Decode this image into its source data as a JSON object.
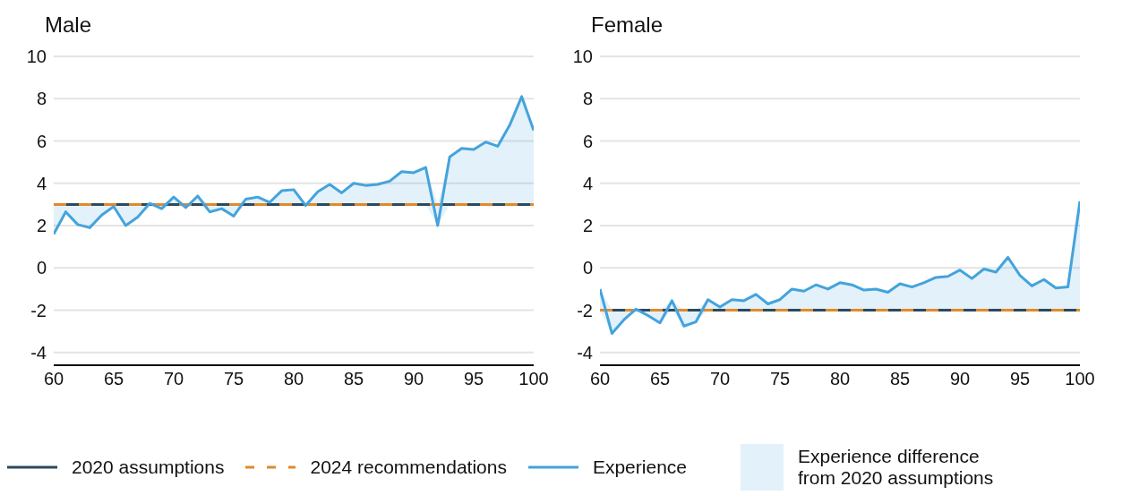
{
  "chart_data": [
    {
      "type": "line",
      "title": "Male",
      "xlim": [
        60,
        100
      ],
      "xticks": [
        60,
        65,
        70,
        75,
        80,
        85,
        90,
        95,
        100
      ],
      "ylim": [
        -4.6,
        10
      ],
      "yticks": [
        -4,
        -2,
        0,
        2,
        4,
        6,
        8,
        10
      ],
      "grid": "y",
      "legend": "bottom",
      "marker": "none",
      "annotations": [
        "Experience difference from 2020 assumptions"
      ],
      "series": [
        {
          "name": "2020 assumptions",
          "color": "#2d4a5e",
          "line_style": "solid",
          "x": [
            60,
            100
          ],
          "values": [
            3,
            3
          ]
        },
        {
          "name": "2024 recommendations",
          "color": "#e08a2c",
          "line_style": "dashed",
          "x": [
            60,
            100
          ],
          "values": [
            3,
            3
          ]
        },
        {
          "name": "Experience",
          "color": "#44a3dc",
          "line_style": "solid",
          "x": [
            60,
            61,
            62,
            63,
            64,
            65,
            66,
            67,
            68,
            69,
            70,
            71,
            72,
            73,
            74,
            75,
            76,
            77,
            78,
            79,
            80,
            81,
            82,
            83,
            84,
            85,
            86,
            87,
            88,
            89,
            90,
            91,
            92,
            93,
            94,
            95,
            96,
            97,
            98,
            99,
            100
          ],
          "values": [
            1.6,
            2.65,
            2.05,
            1.9,
            2.5,
            2.9,
            2.0,
            2.4,
            3.05,
            2.8,
            3.35,
            2.85,
            3.4,
            2.65,
            2.8,
            2.45,
            3.25,
            3.35,
            3.1,
            3.65,
            3.7,
            2.95,
            3.6,
            3.95,
            3.55,
            4.0,
            3.9,
            3.95,
            4.1,
            4.55,
            4.5,
            4.75,
            2.0,
            5.25,
            5.65,
            5.6,
            5.95,
            5.75,
            6.75,
            8.1,
            6.5
          ],
          "lower": [
            1.6,
            2.65,
            2.05,
            1.9,
            2.5,
            2.9,
            2.0,
            2.4,
            3,
            2.8,
            3,
            2.85,
            3,
            2.65,
            2.8,
            2.45,
            3,
            3,
            3,
            3,
            3,
            2.95,
            3,
            3,
            3,
            3,
            3,
            3,
            3,
            3,
            3,
            3,
            2.0,
            3,
            3,
            3,
            3,
            3,
            3,
            3,
            3
          ],
          "upper": [
            3,
            3,
            3,
            3,
            3,
            3,
            3,
            3,
            3.05,
            3,
            3.35,
            3,
            3.4,
            3,
            3,
            3,
            3.25,
            3.35,
            3.1,
            3.65,
            3.7,
            3,
            3.6,
            3.95,
            3.55,
            4.0,
            3.9,
            3.95,
            4.1,
            4.55,
            4.5,
            4.75,
            3,
            5.25,
            5.65,
            5.6,
            5.95,
            5.75,
            6.75,
            8.1,
            6.5
          ]
        }
      ]
    },
    {
      "type": "line",
      "title": "Female",
      "xlim": [
        60,
        100
      ],
      "xticks": [
        60,
        65,
        70,
        75,
        80,
        85,
        90,
        95,
        100
      ],
      "ylim": [
        -4.6,
        10
      ],
      "yticks": [
        -4,
        -2,
        0,
        2,
        4,
        6,
        8,
        10
      ],
      "grid": "y",
      "marker": "none",
      "series": [
        {
          "color": "#2d4a5e",
          "line_style": "solid",
          "x": [
            60,
            100
          ],
          "values": [
            -2,
            -2
          ]
        },
        {
          "color": "#e08a2c",
          "line_style": "dashed",
          "x": [
            60,
            100
          ],
          "values": [
            -2,
            -2
          ]
        },
        {
          "color": "#44a3dc",
          "line_style": "solid",
          "x": [
            60,
            61,
            62,
            63,
            64,
            65,
            66,
            67,
            68,
            69,
            70,
            71,
            72,
            73,
            74,
            75,
            76,
            77,
            78,
            79,
            80,
            81,
            82,
            83,
            84,
            85,
            86,
            87,
            88,
            89,
            90,
            91,
            92,
            93,
            94,
            95,
            96,
            97,
            98,
            99,
            100
          ],
          "values": [
            -1.0,
            -3.1,
            -2.45,
            -1.95,
            -2.25,
            -2.6,
            -1.55,
            -2.75,
            -2.55,
            -1.5,
            -1.85,
            -1.5,
            -1.55,
            -1.25,
            -1.7,
            -1.5,
            -1.0,
            -1.1,
            -0.8,
            -1.0,
            -0.7,
            -0.8,
            -1.05,
            -1.0,
            -1.15,
            -0.75,
            -0.9,
            -0.7,
            -0.45,
            -0.4,
            -0.1,
            -0.5,
            -0.05,
            -0.2,
            0.5,
            -0.35,
            -0.85,
            -0.55,
            -0.95,
            -0.9,
            3.15
          ],
          "lower": [
            -2,
            -3.1,
            -2.45,
            -2,
            -2.25,
            -2.6,
            -2,
            -2.75,
            -2.55,
            -2,
            -2,
            -2,
            -2,
            -2,
            -2,
            -2,
            -2,
            -2,
            -2,
            -2,
            -2,
            -2,
            -2,
            -2,
            -2,
            -2,
            -2,
            -2,
            -2,
            -2,
            -2,
            -2,
            -2,
            -2,
            -2,
            -2,
            -2,
            -2,
            -2,
            -2,
            -2
          ],
          "upper": [
            -1.0,
            -2,
            -2,
            -1.95,
            -2,
            -2,
            -1.55,
            -2,
            -2,
            -1.5,
            -1.85,
            -1.5,
            -1.55,
            -1.25,
            -1.7,
            -1.5,
            -1.0,
            -1.1,
            -0.8,
            -1.0,
            -0.7,
            -0.8,
            -1.05,
            -1.0,
            -1.15,
            -0.75,
            -0.9,
            -0.7,
            -0.45,
            -0.4,
            -0.1,
            -0.5,
            -0.05,
            -0.2,
            0.5,
            -0.35,
            -0.85,
            -0.55,
            -0.95,
            -0.9,
            3.15
          ]
        }
      ]
    }
  ]
}
